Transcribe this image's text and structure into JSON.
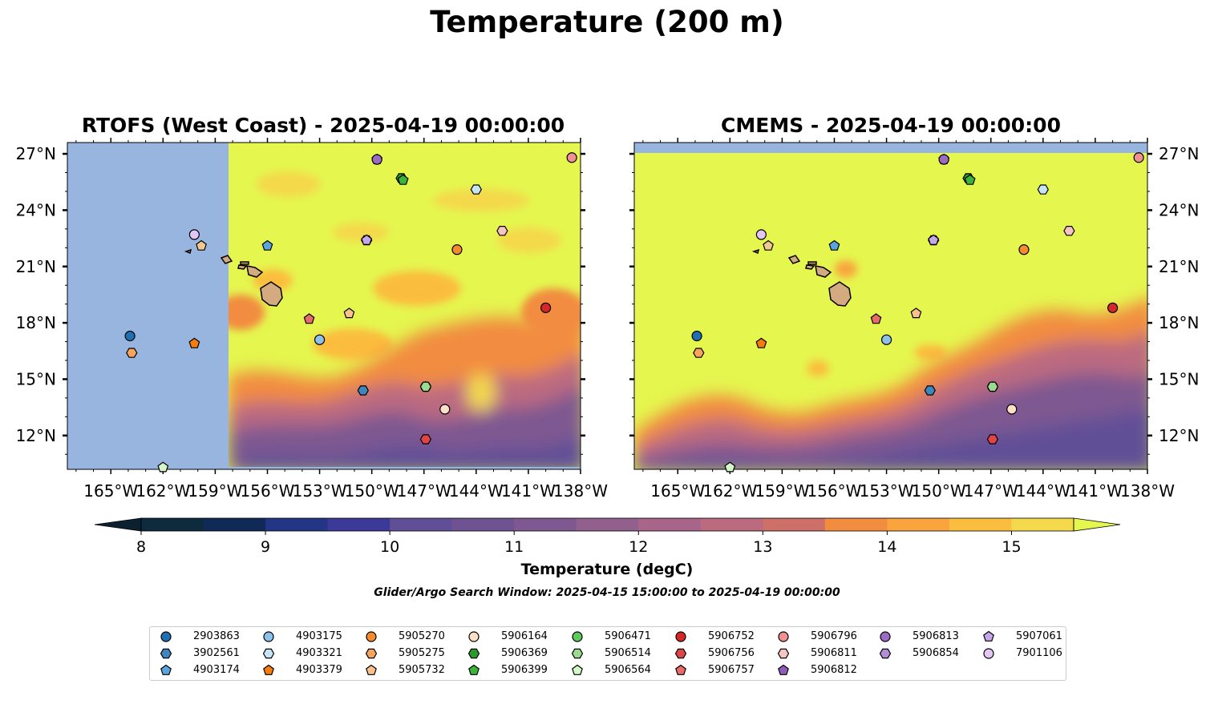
{
  "figure": {
    "suptitle": "Temperature (200 m)",
    "colorbar_label": "Temperature (degC)",
    "window_note": "Glider/Argo Search Window: 2025-04-15 15:00:00 to 2025-04-19 00:00:00"
  },
  "chart_data": [
    {
      "type": "heatmap",
      "title": "RTOFS (West Coast) - 2025-04-19 00:00:00",
      "x_ticks": [
        "165°W",
        "162°W",
        "159°W",
        "156°W",
        "153°W",
        "150°W",
        "147°W",
        "144°W",
        "141°W",
        "138°W"
      ],
      "y_ticks": [
        "27°N",
        "24°N",
        "21°N",
        "18°N",
        "15°N",
        "12°N"
      ],
      "xlim": [
        -167.5,
        -138
      ],
      "ylim": [
        10.2,
        27.6
      ],
      "model_domain_west_edge_lon": -158.3,
      "land": "Hawaiian Islands",
      "grid": false
    },
    {
      "type": "heatmap",
      "title": "CMEMS - 2025-04-19 00:00:00",
      "x_ticks": [
        "165°W",
        "162°W",
        "159°W",
        "156°W",
        "153°W",
        "150°W",
        "147°W",
        "144°W",
        "141°W",
        "138°W"
      ],
      "y_ticks": [
        "27°N",
        "24°N",
        "21°N",
        "18°N",
        "15°N",
        "12°N"
      ],
      "xlim": [
        -167.5,
        -138
      ],
      "ylim": [
        10.2,
        27.6
      ],
      "model_domain_north_edge_lat": 27.1,
      "land": "Hawaiian Islands",
      "grid": false
    }
  ],
  "colorbar": {
    "ticks": [
      "8",
      "9",
      "10",
      "11",
      "12",
      "13",
      "14",
      "15"
    ],
    "range": [
      8,
      15.5
    ],
    "step": 0.5,
    "extend": "both",
    "colormap": [
      "#0e2a3d",
      "#102a57",
      "#233686",
      "#3c3a99",
      "#4f4799",
      "#604f97",
      "#6f5292",
      "#7e5891",
      "#92608d",
      "#a8658a",
      "#bb6a80",
      "#cf7068",
      "#e17950",
      "#f28c3f",
      "#f9a43c",
      "#fbbd3e",
      "#f4d94c"
    ],
    "over_color": "#e5f64f",
    "under_color": "#0c2130",
    "land_color": "#d4aa80",
    "nodata_color": "#98b5df"
  },
  "floats": [
    {
      "id": "2903863",
      "marker": "circle",
      "color": "#1f6fb3",
      "lon": -163.9,
      "lat": 17.3
    },
    {
      "id": "3902561",
      "marker": "hexagon",
      "color": "#3d86bf",
      "lon": -150.5,
      "lat": 14.4
    },
    {
      "id": "4903174",
      "marker": "pentagon",
      "color": "#5aa5dc",
      "lon": -156.0,
      "lat": 22.1
    },
    {
      "id": "4903175",
      "marker": "circle",
      "color": "#8cc1ea",
      "lon": -153.0,
      "lat": 17.1
    },
    {
      "id": "4903321",
      "marker": "hexagon",
      "color": "#c7e4f5",
      "lon": -144.0,
      "lat": 25.1
    },
    {
      "id": "4903379",
      "marker": "pentagon",
      "color": "#f57c0e",
      "lon": -160.2,
      "lat": 16.9
    },
    {
      "id": "5905270",
      "marker": "circle",
      "color": "#f58b2f",
      "lon": -145.1,
      "lat": 21.9
    },
    {
      "id": "5905275",
      "marker": "hexagon",
      "color": "#f7a45f",
      "lon": -163.8,
      "lat": 16.4
    },
    {
      "id": "5905732",
      "marker": "pentagon",
      "color": "#fbc28d",
      "lon": -151.3,
      "lat": 18.5
    },
    {
      "id": "5906164",
      "marker": "circle",
      "color": "#fbdfc8",
      "lon": -145.8,
      "lat": 13.4
    },
    {
      "id": "5906369",
      "marker": "hexagon",
      "color": "#2a9b2a",
      "lon": -148.3,
      "lat": 25.7
    },
    {
      "id": "5906399",
      "marker": "pentagon",
      "color": "#3cb43c",
      "lon": -148.2,
      "lat": 25.6
    },
    {
      "id": "5906471",
      "marker": "circle",
      "color": "#5fc85f",
      "lon": -146.9,
      "lat": 14.6
    },
    {
      "id": "5906514",
      "marker": "hexagon",
      "color": "#9cdb8f",
      "lon": -146.9,
      "lat": 14.6
    },
    {
      "id": "5906564",
      "marker": "pentagon",
      "color": "#d5f6c7",
      "lon": -162.0,
      "lat": 10.3
    },
    {
      "id": "5906752",
      "marker": "circle",
      "color": "#d62728",
      "lon": -140.0,
      "lat": 18.8
    },
    {
      "id": "5906756",
      "marker": "hexagon",
      "color": "#e04446",
      "lon": -146.9,
      "lat": 11.8
    },
    {
      "id": "5906757",
      "marker": "pentagon",
      "color": "#e86a69",
      "lon": -153.6,
      "lat": 18.2
    },
    {
      "id": "5906796",
      "marker": "circle",
      "color": "#f09090",
      "lon": -138.5,
      "lat": 26.8
    },
    {
      "id": "5906811",
      "marker": "hexagon",
      "color": "#f8c3c3",
      "lon": -142.5,
      "lat": 22.9
    },
    {
      "id": "5906812",
      "marker": "pentagon",
      "color": "#8f5cb9",
      "lon": -149.7,
      "lat": 26.7
    },
    {
      "id": "5906813",
      "marker": "circle",
      "color": "#9a6cc4",
      "lon": -149.7,
      "lat": 26.7
    },
    {
      "id": "5906854",
      "marker": "hexagon",
      "color": "#b18fd8",
      "lon": -150.3,
      "lat": 22.4
    },
    {
      "id": "5907061",
      "marker": "pentagon",
      "color": "#c5a8ea",
      "lon": -150.3,
      "lat": 22.4
    },
    {
      "id": "7901106",
      "marker": "circle",
      "color": "#e2c7f6",
      "lon": -160.2,
      "lat": 22.7
    },
    {
      "id": "5905732b",
      "marker": "pentagon",
      "color": "#f0c990",
      "lon": -159.8,
      "lat": 22.1
    }
  ],
  "legend": {
    "columns": [
      [
        "2903863",
        "3902561",
        "4903174"
      ],
      [
        "4903175",
        "4903321",
        "4903379"
      ],
      [
        "5905270",
        "5905275",
        "5905732"
      ],
      [
        "5906164",
        "5906369",
        "5906399"
      ],
      [
        "5906471",
        "5906514",
        "5906564"
      ],
      [
        "5906752",
        "5906756",
        "5906757"
      ],
      [
        "5906796",
        "5906811",
        "5906812"
      ],
      [
        "5906813",
        "5906854"
      ],
      [
        "5907061",
        "7901106"
      ]
    ]
  }
}
